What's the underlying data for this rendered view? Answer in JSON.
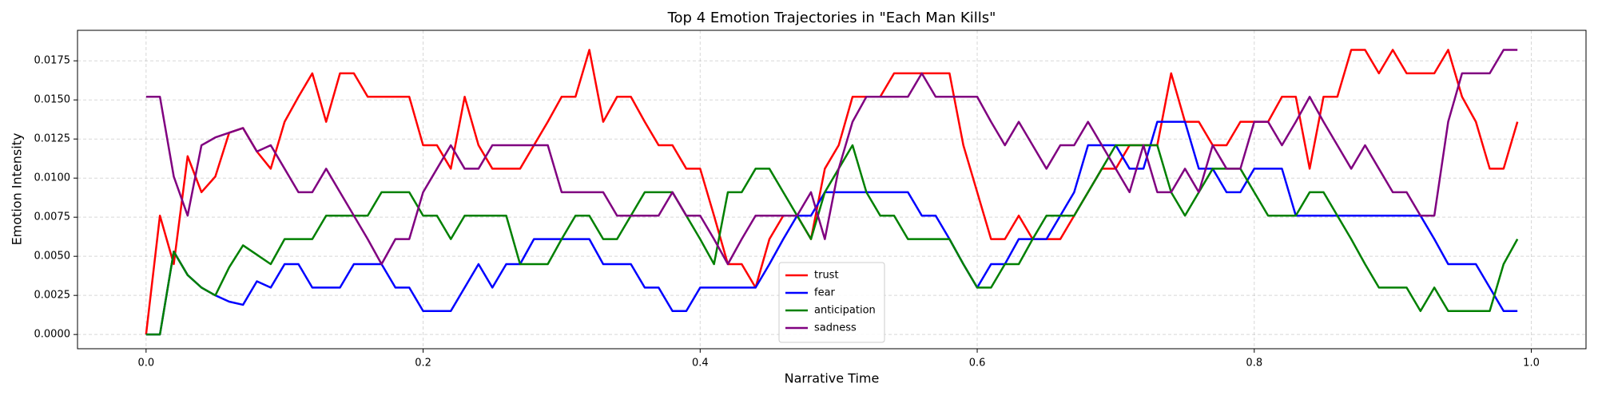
{
  "chart_data": {
    "type": "line",
    "title": "Top 4 Emotion Trajectories in \"Each Man Kills\"",
    "x_label": "Narrative Time",
    "y_label": "Emotion Intensity",
    "x": [
      0,
      0.01,
      0.02,
      0.03,
      0.04,
      0.05,
      0.06,
      0.07,
      0.08,
      0.09,
      0.1,
      0.11,
      0.12,
      0.13,
      0.14,
      0.15,
      0.16,
      0.17,
      0.18,
      0.19,
      0.2,
      0.21,
      0.22,
      0.23,
      0.24,
      0.25,
      0.26,
      0.27,
      0.28,
      0.29,
      0.3,
      0.31,
      0.32,
      0.33,
      0.34,
      0.35,
      0.36,
      0.37,
      0.38,
      0.39,
      0.4,
      0.41,
      0.42,
      0.43,
      0.44,
      0.45,
      0.46,
      0.47,
      0.48,
      0.49,
      0.5,
      0.51,
      0.52,
      0.53,
      0.54,
      0.55,
      0.56,
      0.57,
      0.58,
      0.59,
      0.6,
      0.61,
      0.62,
      0.63,
      0.64,
      0.65,
      0.66,
      0.67,
      0.68,
      0.69,
      0.7,
      0.71,
      0.72,
      0.73,
      0.74,
      0.75,
      0.76,
      0.77,
      0.78,
      0.79,
      0.8,
      0.81,
      0.82,
      0.83,
      0.84,
      0.85,
      0.86,
      0.87,
      0.88,
      0.89,
      0.9,
      0.91,
      0.92,
      0.93,
      0.94,
      0.95,
      0.96,
      0.97,
      0.98,
      0.99
    ],
    "series": [
      {
        "name": "trust",
        "color": "#ff0000",
        "values": [
          0,
          0.0076,
          0.0045,
          0.0114,
          0.0091,
          0.0101,
          0.0129,
          0.0132,
          0.0117,
          0.0106,
          0.0136,
          0.0152,
          0.0167,
          0.0136,
          0.0167,
          0.0167,
          0.0152,
          0.0152,
          0.0152,
          0.0152,
          0.0121,
          0.0121,
          0.0106,
          0.0152,
          0.0121,
          0.0106,
          0.0106,
          0.0106,
          0.0121,
          0.0136,
          0.0152,
          0.0152,
          0.0182,
          0.0136,
          0.0152,
          0.0152,
          0.0136,
          0.0121,
          0.0121,
          0.0106,
          0.0106,
          0.0076,
          0.0045,
          0.0045,
          0.003,
          0.0061,
          0.0076,
          0.0076,
          0.0061,
          0.0106,
          0.0121,
          0.0152,
          0.0152,
          0.0152,
          0.0167,
          0.0167,
          0.0167,
          0.0167,
          0.0167,
          0.0121,
          0.0091,
          0.0061,
          0.0061,
          0.0076,
          0.0061,
          0.0061,
          0.0061,
          0.0076,
          0.0091,
          0.0106,
          0.0106,
          0.0121,
          0.0121,
          0.0121,
          0.0167,
          0.0136,
          0.0136,
          0.0121,
          0.0121,
          0.0136,
          0.0136,
          0.0136,
          0.0152,
          0.0152,
          0.0106,
          0.0152,
          0.0152,
          0.0182,
          0.0182,
          0.0167,
          0.0182,
          0.0167,
          0.0167,
          0.0167,
          0.0182,
          0.0152,
          0.0136,
          0.0106,
          0.0106,
          0.0136
        ]
      },
      {
        "name": "fear",
        "color": "#0000ff",
        "values": [
          0,
          0,
          0.0053,
          0.0038,
          0.003,
          0.0025,
          0.0021,
          0.0019,
          0.0034,
          0.003,
          0.0045,
          0.0045,
          0.003,
          0.003,
          0.003,
          0.0045,
          0.0045,
          0.0045,
          0.003,
          0.003,
          0.0015,
          0.0015,
          0.0015,
          0.003,
          0.0045,
          0.003,
          0.0045,
          0.0045,
          0.0061,
          0.0061,
          0.0061,
          0.0061,
          0.0061,
          0.0045,
          0.0045,
          0.0045,
          0.003,
          0.003,
          0.0015,
          0.0015,
          0.003,
          0.003,
          0.003,
          0.003,
          0.003,
          0.0045,
          0.0061,
          0.0076,
          0.0076,
          0.0091,
          0.0091,
          0.0091,
          0.0091,
          0.0091,
          0.0091,
          0.0091,
          0.0076,
          0.0076,
          0.0061,
          0.0045,
          0.003,
          0.0045,
          0.0045,
          0.0061,
          0.0061,
          0.0061,
          0.0076,
          0.0091,
          0.0121,
          0.0121,
          0.0121,
          0.0106,
          0.0106,
          0.0136,
          0.0136,
          0.0136,
          0.0106,
          0.0106,
          0.0091,
          0.0091,
          0.0106,
          0.0106,
          0.0106,
          0.0076,
          0.0076,
          0.0076,
          0.0076,
          0.0076,
          0.0076,
          0.0076,
          0.0076,
          0.0076,
          0.0076,
          0.0061,
          0.0045,
          0.0045,
          0.0045,
          0.003,
          0.0015,
          0.0015
        ]
      },
      {
        "name": "anticipation",
        "color": "#008000",
        "values": [
          0,
          0,
          0.0053,
          0.0038,
          0.003,
          0.0025,
          0.0043,
          0.0057,
          0.0051,
          0.0045,
          0.0061,
          0.0061,
          0.0061,
          0.0076,
          0.0076,
          0.0076,
          0.0076,
          0.0091,
          0.0091,
          0.0091,
          0.0076,
          0.0076,
          0.0061,
          0.0076,
          0.0076,
          0.0076,
          0.0076,
          0.0045,
          0.0045,
          0.0045,
          0.0061,
          0.0076,
          0.0076,
          0.0061,
          0.0061,
          0.0076,
          0.0091,
          0.0091,
          0.0091,
          0.0076,
          0.0061,
          0.0045,
          0.0091,
          0.0091,
          0.0106,
          0.0106,
          0.0091,
          0.0076,
          0.0061,
          0.0091,
          0.0106,
          0.0121,
          0.0091,
          0.0076,
          0.0076,
          0.0061,
          0.0061,
          0.0061,
          0.0061,
          0.0045,
          0.003,
          0.003,
          0.0045,
          0.0045,
          0.0061,
          0.0076,
          0.0076,
          0.0076,
          0.0091,
          0.0106,
          0.0121,
          0.0121,
          0.0121,
          0.0121,
          0.0091,
          0.0076,
          0.0091,
          0.0106,
          0.0106,
          0.0106,
          0.0091,
          0.0076,
          0.0076,
          0.0076,
          0.0091,
          0.0091,
          0.0076,
          0.0061,
          0.0045,
          0.003,
          0.003,
          0.003,
          0.0015,
          0.003,
          0.0015,
          0.0015,
          0.0015,
          0.0015,
          0.0045,
          0.0061
        ]
      },
      {
        "name": "sadness",
        "color": "#800080",
        "values": [
          0.0152,
          0.0152,
          0.0101,
          0.0076,
          0.0121,
          0.0126,
          0.0129,
          0.0132,
          0.0117,
          0.0121,
          0.0106,
          0.0091,
          0.0091,
          0.0106,
          0.0091,
          0.0076,
          0.0061,
          0.0045,
          0.0061,
          0.0061,
          0.0091,
          0.0106,
          0.0121,
          0.0106,
          0.0106,
          0.0121,
          0.0121,
          0.0121,
          0.0121,
          0.0121,
          0.0091,
          0.0091,
          0.0091,
          0.0091,
          0.0076,
          0.0076,
          0.0076,
          0.0076,
          0.0091,
          0.0076,
          0.0076,
          0.0061,
          0.0045,
          0.0061,
          0.0076,
          0.0076,
          0.0076,
          0.0076,
          0.0091,
          0.0061,
          0.0106,
          0.0136,
          0.0152,
          0.0152,
          0.0152,
          0.0152,
          0.0167,
          0.0152,
          0.0152,
          0.0152,
          0.0152,
          0.0136,
          0.0121,
          0.0136,
          0.0121,
          0.0106,
          0.0121,
          0.0121,
          0.0136,
          0.0121,
          0.0106,
          0.0091,
          0.0121,
          0.0091,
          0.0091,
          0.0106,
          0.0091,
          0.0121,
          0.0106,
          0.0106,
          0.0136,
          0.0136,
          0.0121,
          0.0136,
          0.0152,
          0.0136,
          0.0121,
          0.0106,
          0.0121,
          0.0106,
          0.0091,
          0.0091,
          0.0076,
          0.0076,
          0.0136,
          0.0167,
          0.0167,
          0.0167,
          0.0182,
          0.0182
        ]
      }
    ],
    "xlim": [
      -0.0495,
      1.0395
    ],
    "xticks": [
      {
        "value": 0,
        "label": "0.0"
      },
      0.2,
      0.4,
      0.6,
      0.8,
      {
        "value": 1,
        "label": "1.0"
      }
    ],
    "ylim": [
      -0.00091,
      0.01945
    ],
    "yticks": [
      {
        "value": 0,
        "label": "0.0000"
      },
      {
        "value": 0.0025,
        "label": "0.0025"
      },
      {
        "value": 0.005,
        "label": "0.0050"
      },
      {
        "value": 0.0075,
        "label": "0.0075"
      },
      {
        "value": 0.01,
        "label": "0.0100"
      },
      {
        "value": 0.0125,
        "label": "0.0125"
      },
      {
        "value": 0.015,
        "label": "0.0150"
      },
      {
        "value": 0.0175,
        "label": "0.0175"
      }
    ],
    "grid": true,
    "legend": "lower center"
  }
}
